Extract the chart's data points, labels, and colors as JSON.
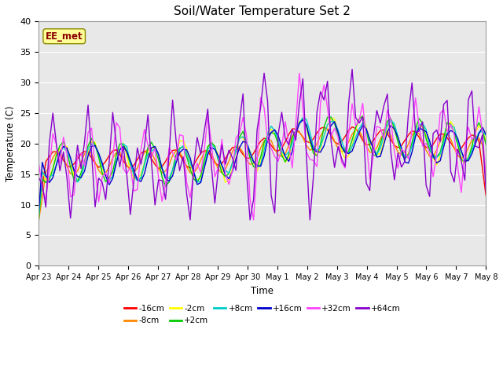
{
  "title": "Soil/Water Temperature Set 2",
  "xlabel": "Time",
  "ylabel": "Temperature (C)",
  "ylim": [
    0,
    40
  ],
  "yticks": [
    0,
    5,
    10,
    15,
    20,
    25,
    30,
    35,
    40
  ],
  "background_color": "#e8e8e8",
  "plot_bg": "#e8e8e8",
  "annotation_text": "EE_met",
  "annotation_color": "#8b0000",
  "annotation_bg": "#ffff99",
  "x_labels": [
    "Apr 23",
    "Apr 24",
    "Apr 25",
    "Apr 26",
    "Apr 27",
    "Apr 28",
    "Apr 29",
    "Apr 30",
    "May 1",
    "May 2",
    "May 3",
    "May 4",
    "May 5",
    "May 6",
    "May 7",
    "May 8"
  ],
  "series": [
    {
      "label": "-16cm",
      "color": "#ff0000"
    },
    {
      "label": "-8cm",
      "color": "#ff8800"
    },
    {
      "label": "-2cm",
      "color": "#ffff00"
    },
    {
      "label": "+2cm",
      "color": "#00cc00"
    },
    {
      "label": "+8cm",
      "color": "#00cccc"
    },
    {
      "label": "+16cm",
      "color": "#0000cc"
    },
    {
      "label": "+32cm",
      "color": "#ff44ff"
    },
    {
      "label": "+64cm",
      "color": "#8800cc"
    }
  ]
}
